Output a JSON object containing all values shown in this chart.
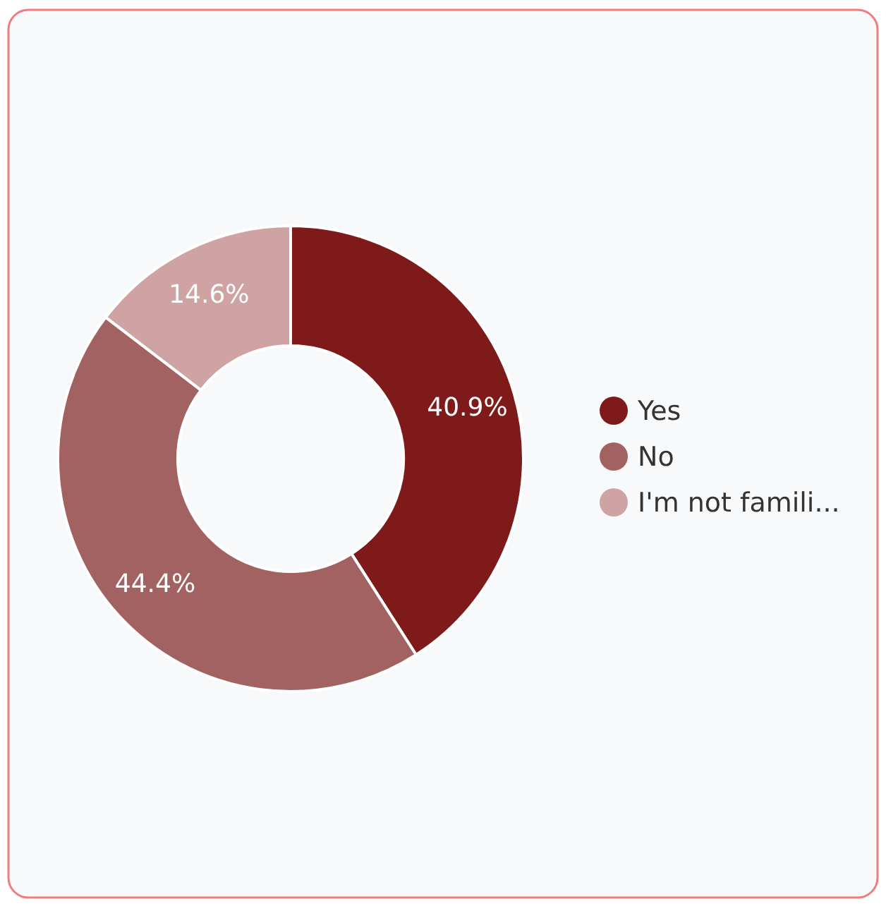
{
  "chart_data": {
    "type": "donut",
    "categories": [
      "Yes",
      "No",
      "I'm not famili..."
    ],
    "values": [
      40.9,
      44.4,
      14.6
    ],
    "colors": [
      "#7f1a1a",
      "#a36262",
      "#cfa3a3"
    ],
    "value_labels": [
      "40.9%",
      "44.4%",
      "14.6%"
    ],
    "legend": "right"
  }
}
